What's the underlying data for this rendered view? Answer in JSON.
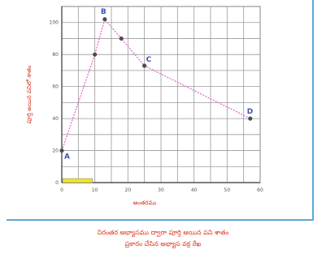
{
  "chart_data": {
    "type": "line",
    "xlabel": "అంతరము",
    "ylabel": "పూర్తి అయిన పనిలో శాతం",
    "xlim": [
      0,
      60
    ],
    "ylim": [
      0,
      110
    ],
    "x_ticks": [
      0,
      10,
      20,
      30,
      40,
      50,
      60
    ],
    "x_tick_labels": [
      "0",
      "10",
      "20",
      "30",
      "40",
      "50",
      "60"
    ],
    "y_ticks": [
      0,
      20,
      40,
      60,
      80,
      100
    ],
    "y_tick_labels": [
      "0",
      "20",
      "40",
      "60",
      "80",
      "100"
    ],
    "grid": true,
    "line_color": "#e86ad0",
    "marker_color": "#4d4d4d",
    "label_color": "#3a52b8",
    "series": [
      {
        "x": [
          0,
          10,
          13,
          18,
          25,
          57
        ],
        "y": [
          20,
          80,
          102,
          90,
          73,
          40
        ]
      }
    ],
    "point_labels": [
      {
        "text": "A",
        "x": 0,
        "y": 20
      },
      {
        "text": "B",
        "x": 13,
        "y": 102
      },
      {
        "text": "C",
        "x": 25,
        "y": 73
      },
      {
        "text": "D",
        "x": 57,
        "y": 40
      }
    ],
    "legend_swatch_color": "#f5e619"
  },
  "caption": {
    "line1": "నిరంతర అభ్యాసము ద్వారా పూర్తి అయిన పని శాతం",
    "line2": "ప్రకారం చేసిన అభ్యాస వక్ర రేఖ"
  }
}
